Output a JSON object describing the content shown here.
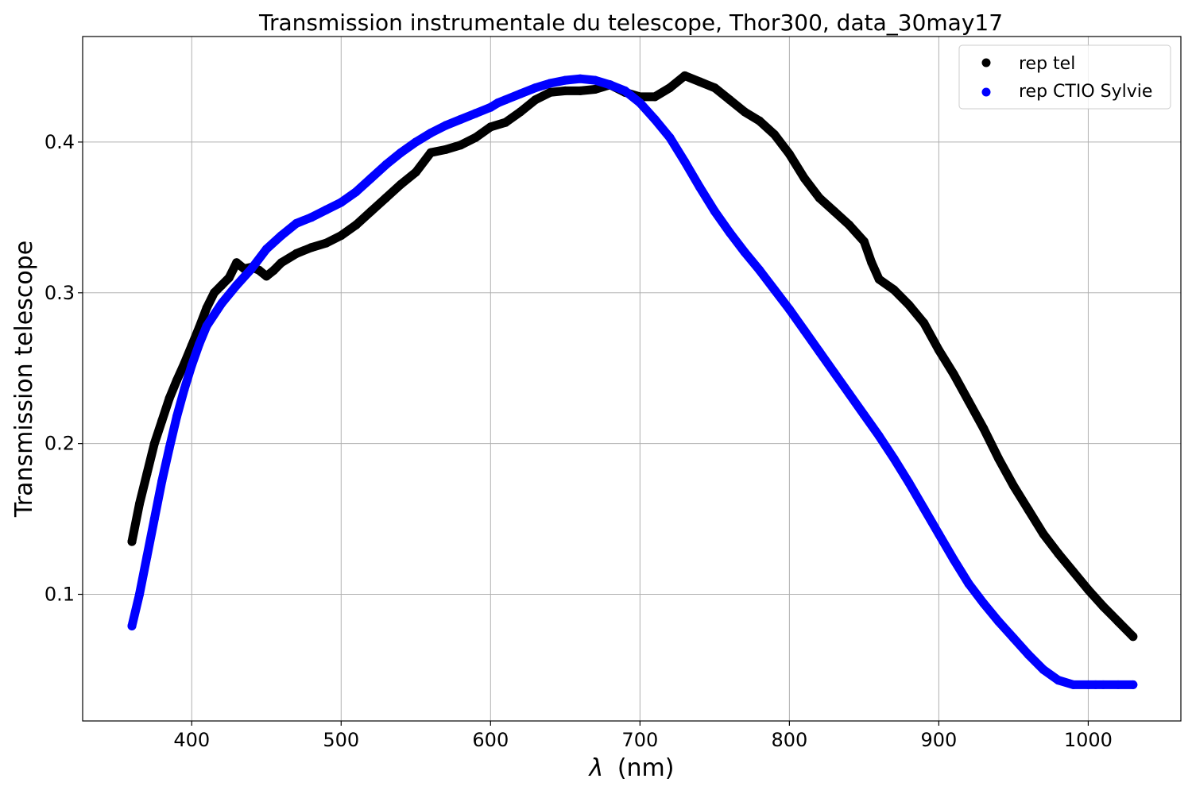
{
  "chart_data": {
    "type": "scatter",
    "title": "Transmission instrumentale du telescope, Thor300, data_30may17",
    "xlabel": "(nm)",
    "xlabel_symbol": "λ",
    "ylabel": "Transmission telescope",
    "xlim": [
      327,
      1062
    ],
    "ylim": [
      0.016,
      0.47
    ],
    "xticks": [
      400,
      500,
      600,
      700,
      800,
      900,
      1000
    ],
    "xtick_labels": [
      "400",
      "500",
      "600",
      "700",
      "800",
      "900",
      "1000"
    ],
    "yticks": [
      0.1,
      0.2,
      0.3,
      0.4
    ],
    "ytick_labels": [
      "0.1",
      "0.2",
      "0.3",
      "0.4"
    ],
    "grid": true,
    "legend_position": "top-right",
    "series": [
      {
        "name": "rep tel",
        "color": "#000000",
        "x": [
          360,
          365,
          370,
          375,
          380,
          385,
          390,
          395,
          400,
          405,
          410,
          415,
          420,
          425,
          430,
          435,
          440,
          445,
          450,
          455,
          460,
          470,
          480,
          490,
          500,
          510,
          520,
          530,
          540,
          550,
          560,
          570,
          580,
          590,
          600,
          610,
          620,
          630,
          640,
          650,
          660,
          670,
          680,
          690,
          700,
          710,
          720,
          730,
          740,
          750,
          760,
          770,
          780,
          790,
          800,
          810,
          820,
          830,
          840,
          850,
          855,
          860,
          870,
          880,
          890,
          900,
          910,
          920,
          930,
          940,
          950,
          960,
          970,
          980,
          990,
          1000,
          1010,
          1020,
          1030
        ],
        "y": [
          0.135,
          0.16,
          0.18,
          0.2,
          0.215,
          0.23,
          0.242,
          0.253,
          0.265,
          0.277,
          0.29,
          0.3,
          0.305,
          0.31,
          0.32,
          0.316,
          0.317,
          0.315,
          0.311,
          0.315,
          0.32,
          0.326,
          0.33,
          0.333,
          0.338,
          0.345,
          0.354,
          0.363,
          0.372,
          0.38,
          0.393,
          0.395,
          0.398,
          0.403,
          0.41,
          0.413,
          0.42,
          0.428,
          0.433,
          0.434,
          0.434,
          0.435,
          0.438,
          0.433,
          0.43,
          0.43,
          0.436,
          0.444,
          0.44,
          0.436,
          0.428,
          0.42,
          0.414,
          0.405,
          0.392,
          0.376,
          0.363,
          0.354,
          0.345,
          0.334,
          0.32,
          0.309,
          0.302,
          0.292,
          0.28,
          0.262,
          0.246,
          0.228,
          0.21,
          0.19,
          0.172,
          0.156,
          0.14,
          0.127,
          0.115,
          0.103,
          0.092,
          0.082,
          0.072
        ]
      },
      {
        "name": "rep CTIO Sylvie",
        "color": "#0000ff",
        "x": [
          360,
          365,
          370,
          375,
          380,
          385,
          390,
          395,
          400,
          405,
          410,
          420,
          430,
          440,
          450,
          460,
          470,
          480,
          490,
          500,
          510,
          520,
          530,
          540,
          550,
          560,
          570,
          580,
          590,
          600,
          605,
          610,
          620,
          630,
          640,
          650,
          660,
          670,
          680,
          690,
          700,
          710,
          720,
          730,
          740,
          750,
          760,
          770,
          780,
          790,
          800,
          810,
          820,
          830,
          840,
          850,
          860,
          870,
          880,
          890,
          900,
          910,
          920,
          930,
          940,
          950,
          960,
          970,
          980,
          990,
          1000,
          1005,
          1010,
          1020,
          1030
        ],
        "y": [
          0.079,
          0.1,
          0.125,
          0.15,
          0.175,
          0.197,
          0.218,
          0.236,
          0.252,
          0.266,
          0.278,
          0.293,
          0.305,
          0.316,
          0.329,
          0.338,
          0.346,
          0.35,
          0.355,
          0.36,
          0.367,
          0.376,
          0.385,
          0.393,
          0.4,
          0.406,
          0.411,
          0.415,
          0.419,
          0.423,
          0.426,
          0.428,
          0.432,
          0.436,
          0.439,
          0.441,
          0.442,
          0.441,
          0.438,
          0.434,
          0.426,
          0.415,
          0.403,
          0.387,
          0.37,
          0.354,
          0.34,
          0.327,
          0.315,
          0.302,
          0.289,
          0.275,
          0.261,
          0.247,
          0.233,
          0.219,
          0.205,
          0.19,
          0.174,
          0.157,
          0.14,
          0.123,
          0.107,
          0.094,
          0.082,
          0.071,
          0.06,
          0.05,
          0.043,
          0.04,
          0.04,
          0.04,
          0.04,
          0.04,
          0.04
        ]
      }
    ]
  }
}
